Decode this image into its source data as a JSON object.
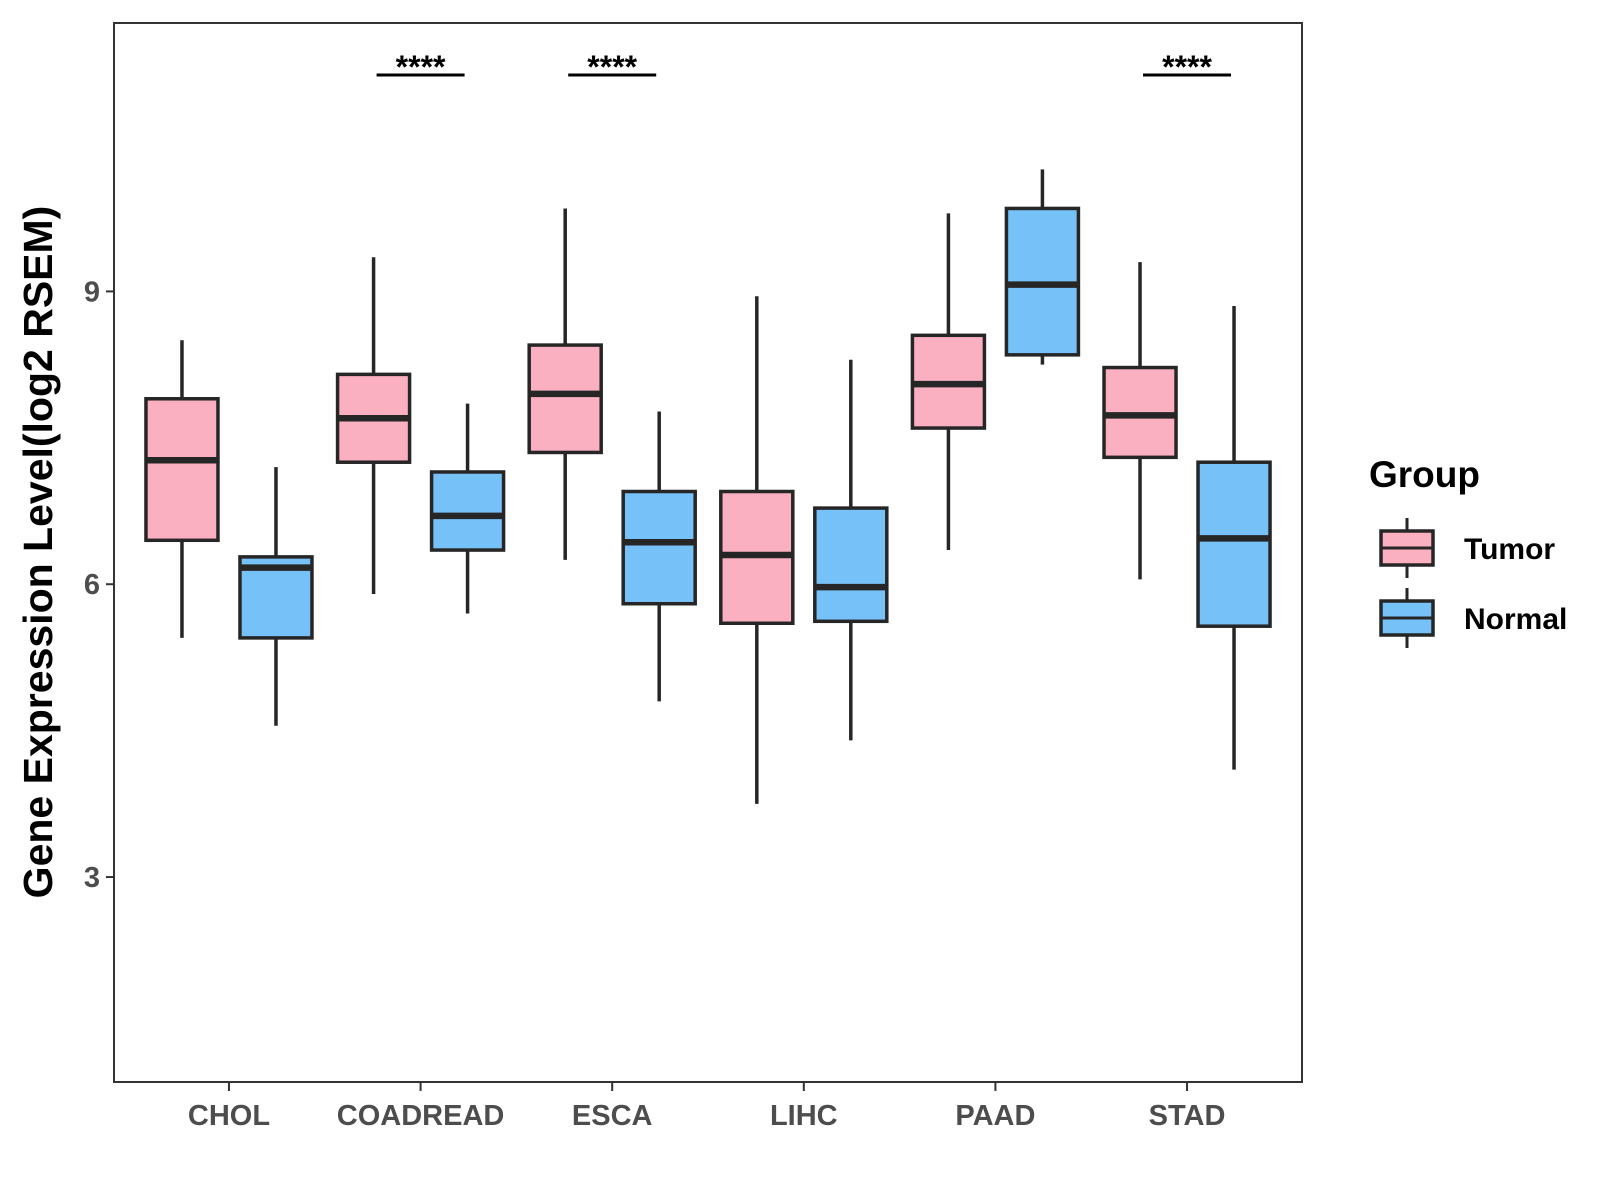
{
  "chart_data": {
    "type": "boxplot",
    "title": "",
    "xlabel": "",
    "ylabel": "Gene Expression Level(log2 RSEM)",
    "ylim": [
      0.9,
      11.75
    ],
    "yticks": [
      3,
      6,
      9
    ],
    "ytick_labels": [
      "3",
      "6",
      "9"
    ],
    "categories": [
      "CHOL",
      "COADREAD",
      "ESCA",
      "LIHC",
      "PAAD",
      "STAD"
    ],
    "legend": {
      "title": "Group",
      "position": "right"
    },
    "series": [
      {
        "name": "Tumor",
        "color": "#FBB0C2",
        "boxes": [
          {
            "category": "CHOL",
            "min": 5.45,
            "q1": 6.45,
            "median": 7.27,
            "q3": 7.9,
            "max": 8.5
          },
          {
            "category": "COADREAD",
            "min": 5.9,
            "q1": 7.25,
            "median": 7.7,
            "q3": 8.15,
            "max": 9.35
          },
          {
            "category": "ESCA",
            "min": 6.25,
            "q1": 7.35,
            "median": 7.95,
            "q3": 8.45,
            "max": 9.85
          },
          {
            "category": "LIHC",
            "min": 3.75,
            "q1": 5.6,
            "median": 6.3,
            "q3": 6.95,
            "max": 8.95
          },
          {
            "category": "PAAD",
            "min": 6.35,
            "q1": 7.6,
            "median": 8.05,
            "q3": 8.55,
            "max": 9.8
          },
          {
            "category": "STAD",
            "min": 6.05,
            "q1": 7.3,
            "median": 7.73,
            "q3": 8.22,
            "max": 9.3
          }
        ]
      },
      {
        "name": "Normal",
        "color": "#76C1F8",
        "boxes": [
          {
            "category": "CHOL",
            "min": 4.55,
            "q1": 5.45,
            "median": 6.17,
            "q3": 6.28,
            "max": 7.2
          },
          {
            "category": "COADREAD",
            "min": 5.7,
            "q1": 6.35,
            "median": 6.7,
            "q3": 7.15,
            "max": 7.85
          },
          {
            "category": "ESCA",
            "min": 4.8,
            "q1": 5.8,
            "median": 6.43,
            "q3": 6.95,
            "max": 7.77
          },
          {
            "category": "LIHC",
            "min": 4.4,
            "q1": 5.62,
            "median": 5.97,
            "q3": 6.78,
            "max": 8.3
          },
          {
            "category": "PAAD",
            "min": 8.25,
            "q1": 8.35,
            "median": 9.07,
            "q3": 9.85,
            "max": 10.25
          },
          {
            "category": "STAD",
            "min": 4.1,
            "q1": 5.57,
            "median": 6.47,
            "q3": 7.25,
            "max": 8.85
          }
        ]
      }
    ],
    "significance": [
      {
        "category": "COADREAD",
        "label": "****"
      },
      {
        "category": "ESCA",
        "label": "****"
      },
      {
        "category": "STAD",
        "label": "****"
      }
    ],
    "colors": {
      "outline": "#262626",
      "tick_text": "#4d4d4d",
      "panel_border": "#333333",
      "background": "#ffffff"
    }
  }
}
